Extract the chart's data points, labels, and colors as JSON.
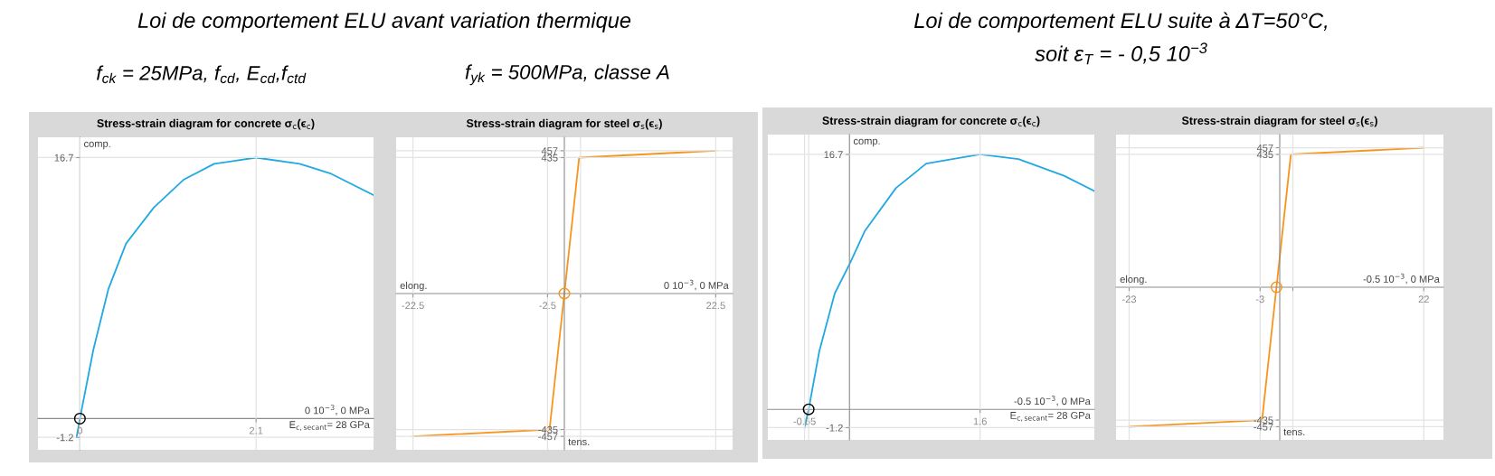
{
  "chart_data": [
    {
      "type": "other",
      "title": "Loi de comportement ELU avant variation thermique",
      "annotations": [
        "f$_{ck}$ = 25MPa, f$_{cd}$, E$_{cd}$,f$_{ctd}$",
        "f$_{yk}$ = 500MPa, classe A"
      ]
    },
    {
      "type": "other",
      "title": "Loi de comportement ELU suite à ΔT=50°C,",
      "subtitle": "soit ε$_{T}$ = - 0,5 10$^{−3}$"
    },
    {
      "type": "line",
      "title": "Stress-strain diagram for concrete σ$_{c}$(ϵ$_{c}$)",
      "xlim": [
        -0.5,
        3.5
      ],
      "ylim": [
        -2,
        18
      ],
      "xticks": [
        0,
        2.1
      ],
      "yticks": [
        -1.2,
        16.7
      ],
      "grid": true,
      "series": [
        {
          "type": "line",
          "color": "#21a9e1",
          "x": [
            -0.04,
            0,
            0.16,
            0.34,
            0.55,
            0.88,
            1.24,
            1.6,
            2.1,
            2.62,
            2.98,
            3.5
          ],
          "values": [
            -1.2,
            0,
            4.4,
            8.3,
            11.2,
            13.5,
            15.3,
            16.3,
            16.7,
            16.3,
            15.7,
            14.3
          ]
        },
        {
          "type": "scatter",
          "marker": "circle",
          "color": "#000000",
          "x": [
            0
          ],
          "values": [
            0
          ]
        }
      ],
      "annotations": [
        "comp.",
        "0 10$^{−3}$, 0 MPa",
        "E$_{c,secant}$= 28 GPa"
      ]
    },
    {
      "type": "line",
      "title": "Stress-strain diagram for steel σ$_{s}$(ϵ$_{s}$)",
      "xlim": [
        -25,
        25
      ],
      "ylim": [
        -500,
        500
      ],
      "xticks": [
        -22.5,
        -2.5,
        {
          "value": 2.4,
          "label": null
        },
        22.5
      ],
      "yticks": [
        -457,
        -435,
        435,
        457
      ],
      "grid": true,
      "series": [
        {
          "type": "line",
          "color": "#f7941d",
          "x": [
            -22.5,
            -2.2,
            0,
            2.2,
            22.5
          ],
          "values": [
            -457,
            -435,
            0,
            435,
            457
          ]
        },
        {
          "type": "scatter",
          "marker": "circle",
          "color": "#f7941d",
          "x": [
            0
          ],
          "values": [
            0
          ]
        }
      ],
      "annotations": [
        "elong.",
        "tens.",
        "0 10$^{−3}$, 0 MPa"
      ]
    },
    {
      "type": "line",
      "title": "Stress-strain diagram for concrete σ$_{c}$(ϵ$_{c}$)",
      "xlim": [
        -1,
        3
      ],
      "ylim": [
        -2,
        18
      ],
      "xticks": [
        -0.55,
        {
          "value": -0.5,
          "label": null
        },
        1.6
      ],
      "yticks": [
        -1.2,
        16.7
      ],
      "grid": true,
      "series": [
        {
          "type": "line",
          "color": "#21a9e1",
          "x": [
            -0.55,
            -0.5,
            -0.37,
            -0.18,
            0,
            0.19,
            0.57,
            0.94,
            1.6,
            2.07,
            2.63,
            3.0
          ],
          "values": [
            -1.2,
            0,
            3.8,
            7.6,
            9.5,
            11.7,
            14.5,
            16.1,
            16.7,
            16.4,
            15.3,
            14.3
          ]
        },
        {
          "type": "scatter",
          "marker": "circle",
          "color": "#000000",
          "x": [
            -0.5
          ],
          "values": [
            0
          ]
        }
      ],
      "annotations": [
        "comp.",
        "-0.5 10$^{−3}$, 0 MPa",
        "E$_{c,secant}$= 28 GPa"
      ]
    },
    {
      "type": "line",
      "title": "Stress-strain diagram for steel σ$_{s}$(ϵ$_{s}$)",
      "xlim": [
        -25,
        25
      ],
      "ylim": [
        -500,
        500
      ],
      "xticks": [
        -23,
        -3,
        {
          "value": 2,
          "label": null
        },
        22
      ],
      "yticks": [
        -457,
        -435,
        435,
        457
      ],
      "grid": true,
      "series": [
        {
          "type": "line",
          "color": "#f7941d",
          "x": [
            -23,
            -2.7,
            -0.5,
            1.7,
            22
          ],
          "values": [
            -457,
            -435,
            0,
            435,
            457
          ]
        },
        {
          "type": "scatter",
          "marker": "circle",
          "color": "#f7941d",
          "x": [
            -0.5
          ],
          "values": [
            0
          ]
        }
      ],
      "annotations": [
        "elong.",
        "tens.",
        "-0.5 10$^{−3}$, 0 MPa"
      ]
    }
  ]
}
